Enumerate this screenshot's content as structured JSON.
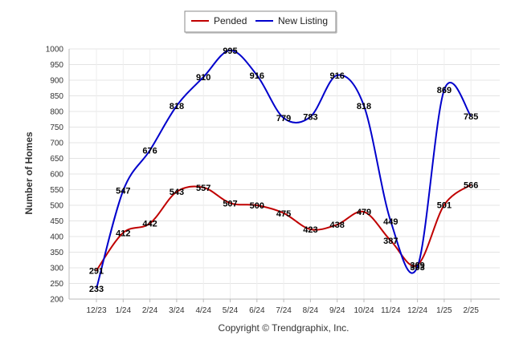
{
  "chart_data": {
    "type": "line",
    "ylabel": "Number of Homes",
    "xlabel": "",
    "ylim": [
      200,
      1000
    ],
    "y_ticks": [
      200,
      250,
      300,
      350,
      400,
      450,
      500,
      550,
      600,
      650,
      700,
      750,
      800,
      850,
      900,
      950,
      1000
    ],
    "categories": [
      "12/23",
      "1/24",
      "2/24",
      "3/24",
      "4/24",
      "5/24",
      "6/24",
      "7/24",
      "8/24",
      "9/24",
      "10/24",
      "11/24",
      "12/24",
      "1/25",
      "2/25"
    ],
    "grid": true,
    "legend_position": "top-center",
    "series": [
      {
        "name": "Pended",
        "color": "#c00000",
        "values": [
          291,
          412,
          442,
          543,
          557,
          507,
          500,
          475,
          423,
          438,
          479,
          387,
          309,
          501,
          566
        ]
      },
      {
        "name": "New Listing",
        "color": "#0000cc",
        "values": [
          233,
          547,
          676,
          818,
          910,
          995,
          916,
          779,
          783,
          916,
          818,
          449,
          303,
          869,
          785
        ]
      }
    ]
  },
  "footer": "Copyright © Trendgraphix, Inc."
}
